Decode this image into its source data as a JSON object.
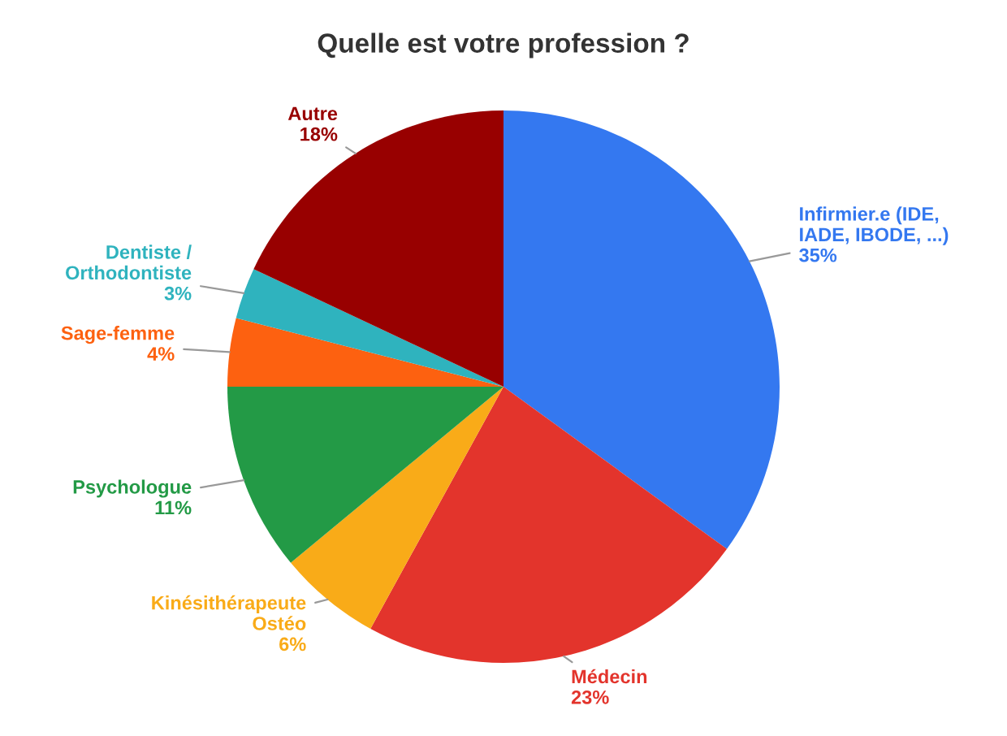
{
  "chart_data": {
    "type": "pie",
    "title": "Quelle est votre profession ?",
    "categories": [
      "Infirmier.e (IDE,\nIADE, IBODE, ...)",
      "Médecin",
      "Kinésithérapeute\nOstéo",
      "Psychologue",
      "Sage-femme",
      "Dentiste /\nOrthodontiste",
      "Autre"
    ],
    "values": [
      35,
      23,
      6,
      11,
      4,
      3,
      18
    ],
    "value_labels": [
      "35%",
      "23%",
      "6%",
      "11%",
      "4%",
      "3%",
      "18%"
    ],
    "colors": [
      "#3478f0",
      "#e3342c",
      "#f9ab18",
      "#239a46",
      "#fd6110",
      "#2fb3be",
      "#980000"
    ],
    "legend": false
  }
}
